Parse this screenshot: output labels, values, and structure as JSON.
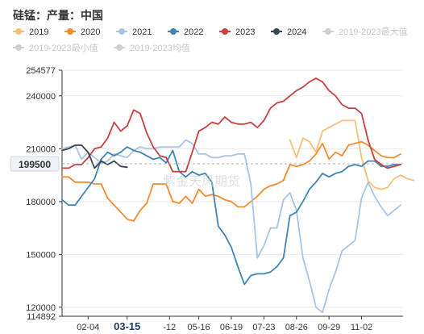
{
  "title": "硅锰：产量：中国",
  "watermark": "紫金天风期货",
  "legend": [
    {
      "name": "2019",
      "color": "#f9bf75",
      "marker": "dot"
    },
    {
      "name": "2020",
      "color": "#f48c2e",
      "marker": "dot"
    },
    {
      "name": "2021",
      "color": "#a9c4e4",
      "marker": "dot"
    },
    {
      "name": "2022",
      "color": "#3f84b5",
      "marker": "dot"
    },
    {
      "name": "2023",
      "color": "#c94040",
      "marker": "dot"
    },
    {
      "name": "2024",
      "color": "#37474f",
      "marker": "dot"
    },
    {
      "name": "2019-2023最大值",
      "color": "#cfcfcf",
      "marker": "dot",
      "dim": true
    },
    {
      "name": "2019-2023最小值",
      "color": "#cfcfcf",
      "marker": "dot",
      "dim": true
    },
    {
      "name": "2019-2023均值",
      "color": "#cfcfcf",
      "marker": "dot",
      "dim": true
    }
  ],
  "axis_pointer": {
    "y_label": "199500",
    "x_label": "03-15"
  },
  "chart_data": {
    "type": "line",
    "title": "硅锰：产量：中国",
    "ylim": [
      114892,
      254577
    ],
    "y_ticks": [
      {
        "value": 254577,
        "label": "254577"
      },
      {
        "value": 240000,
        "label": "240000"
      },
      {
        "value": 210000,
        "label": "210000"
      },
      {
        "value": 180000,
        "label": "180000"
      },
      {
        "value": 150000,
        "label": "150000"
      },
      {
        "value": 120000,
        "label": "120000"
      },
      {
        "value": 114892,
        "label": "114892"
      }
    ],
    "x_ticks": [
      {
        "week": 5,
        "label": "02-04"
      },
      {
        "week": 11,
        "label": "03-15",
        "bold": true
      },
      {
        "week": 17.5,
        "label": "-12"
      },
      {
        "week": 22,
        "label": "05-16"
      },
      {
        "week": 27,
        "label": "06-19"
      },
      {
        "week": 32,
        "label": "07-23"
      },
      {
        "week": 37,
        "label": "08-26"
      },
      {
        "week": 42,
        "label": "09-29"
      },
      {
        "week": 47,
        "label": "11-02"
      }
    ],
    "x_range": [
      1,
      53
    ],
    "series": [
      {
        "name": "2019",
        "color": "#f9bf75",
        "start": 36,
        "values": [
          215000,
          205000,
          216000,
          214000,
          208000,
          220000,
          222000,
          224000,
          226000,
          226000,
          226000,
          205000,
          192000,
          188000,
          187000,
          188000,
          193000,
          195000,
          193000,
          192000
        ]
      },
      {
        "name": "2020",
        "color": "#f48c2e",
        "start": 1,
        "values": [
          194000,
          194000,
          191000,
          191000,
          191000,
          190000,
          190000,
          182000,
          178000,
          174000,
          170000,
          169000,
          175000,
          179000,
          190000,
          190000,
          190000,
          180000,
          179000,
          183000,
          179000,
          187000,
          183000,
          184000,
          183000,
          181000,
          180000,
          177000,
          177000,
          180000,
          183000,
          187000,
          189000,
          190000,
          192000,
          201000,
          200000,
          201000,
          203000,
          207000,
          213000,
          204000,
          208000,
          206000,
          212000,
          213000,
          214000,
          212000,
          209000,
          206000,
          205000,
          205000,
          207000
        ]
      },
      {
        "name": "2021",
        "color": "#a9c4e4",
        "start": 1,
        "values": [
          210000,
          211000,
          212000,
          204000,
          208000,
          205000,
          202000,
          203000,
          207000,
          206000,
          205000,
          209000,
          211000,
          210000,
          210000,
          211000,
          211000,
          211000,
          211000,
          215000,
          213000,
          207000,
          207000,
          205000,
          205000,
          206000,
          206000,
          207000,
          207000,
          190000,
          148000,
          155000,
          165000,
          165000,
          181000,
          185000,
          175000,
          148000,
          135000,
          120000,
          117000,
          130000,
          140000,
          152000,
          155000,
          158000,
          182000,
          191000,
          183000,
          177000,
          172000,
          175000,
          178000
        ]
      },
      {
        "name": "2022",
        "color": "#3f84b5",
        "start": 1,
        "values": [
          181000,
          178000,
          178000,
          183000,
          188000,
          193000,
          204000,
          208000,
          206000,
          208000,
          211000,
          209000,
          208000,
          206000,
          204000,
          205000,
          202000,
          209000,
          197000,
          194000,
          197000,
          195000,
          196000,
          191000,
          166000,
          161000,
          154000,
          143000,
          133000,
          138000,
          139000,
          139000,
          140000,
          143000,
          148000,
          172000,
          174000,
          180000,
          187000,
          191000,
          196000,
          194000,
          196000,
          197000,
          200000,
          201000,
          200000,
          203000,
          203000,
          200000,
          200000,
          201000,
          201000
        ]
      },
      {
        "name": "2023",
        "color": "#c94040",
        "start": 1,
        "values": [
          199000,
          199000,
          201000,
          201000,
          205000,
          210000,
          211000,
          216000,
          225000,
          220000,
          223000,
          232000,
          230000,
          219000,
          211000,
          206000,
          205000,
          197000,
          197000,
          197000,
          208000,
          220000,
          222000,
          225000,
          224000,
          228000,
          225000,
          224000,
          224000,
          225000,
          222000,
          226000,
          233000,
          236000,
          237000,
          240000,
          243000,
          245000,
          248000,
          250000,
          248000,
          243000,
          240000,
          235000,
          233000,
          233000,
          230000,
          215000,
          204000,
          201000,
          199000,
          200000,
          201000
        ]
      },
      {
        "name": "2024",
        "color": "#37474f",
        "start": 1,
        "values": [
          209000,
          210000,
          212000,
          212000,
          208000,
          199000,
          203000,
          201000,
          203000,
          200000,
          199500
        ]
      }
    ]
  }
}
